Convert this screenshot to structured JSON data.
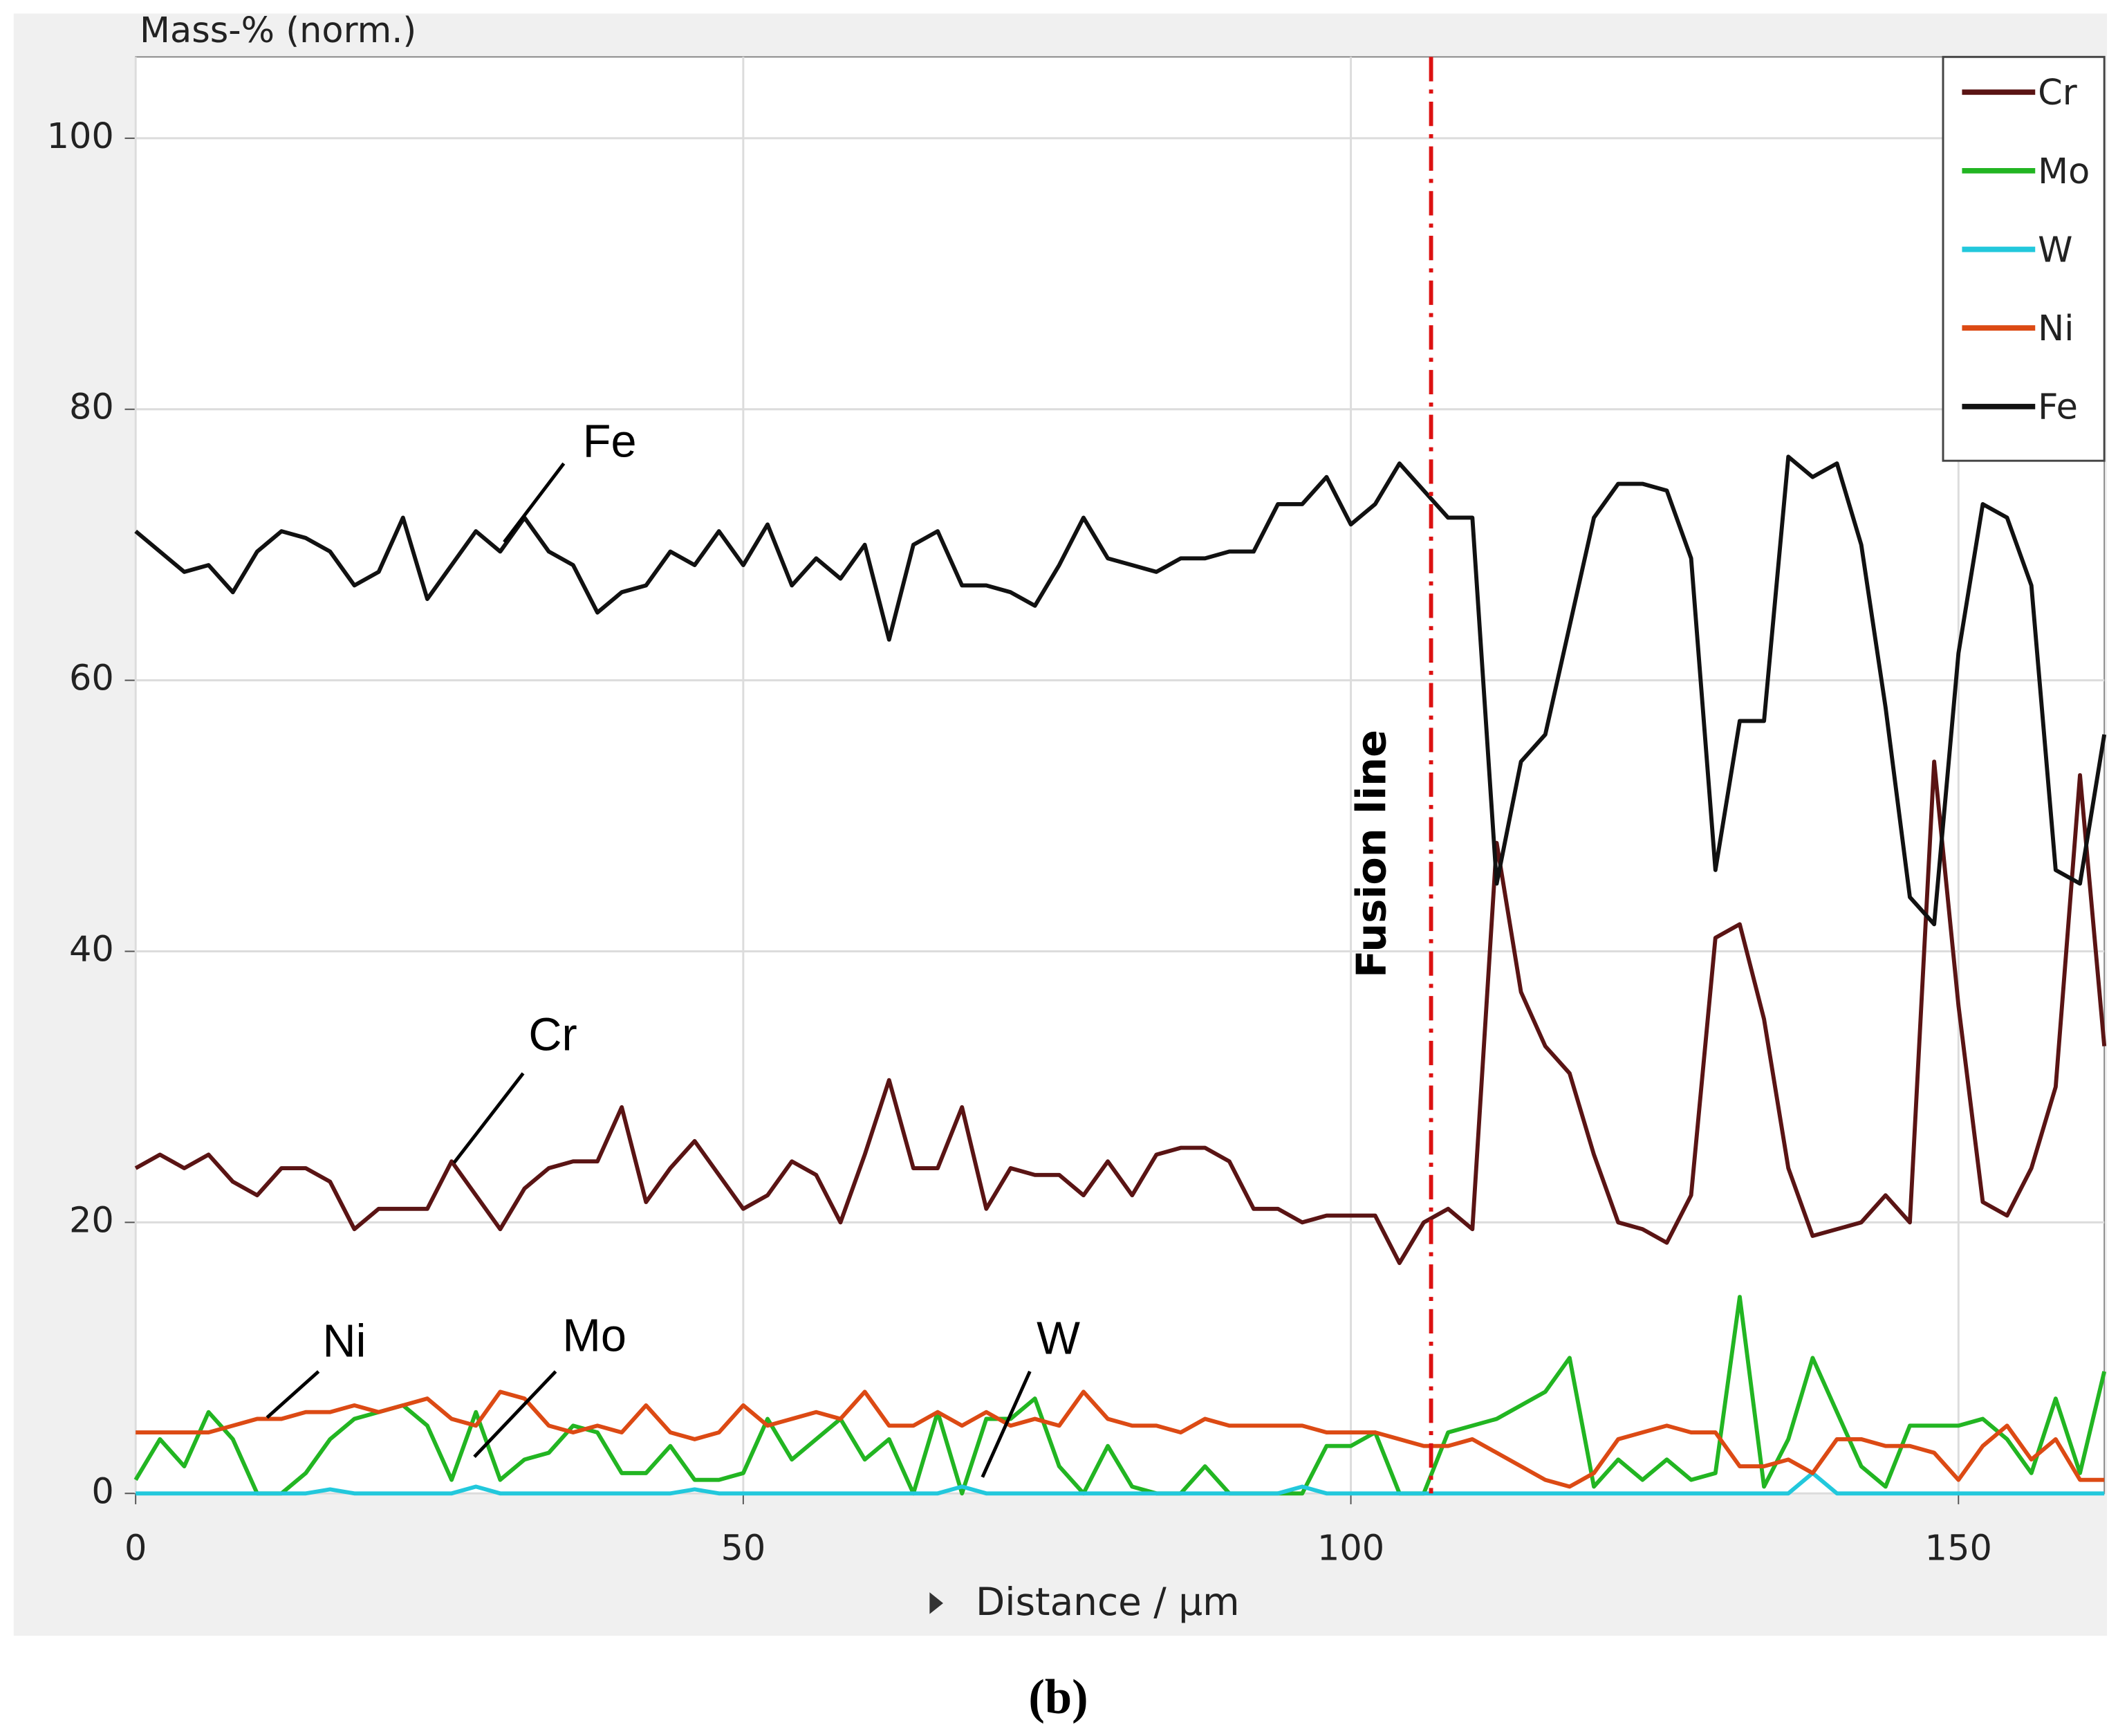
{
  "chart_data": {
    "type": "line",
    "y_label": "Mass-% (norm.)",
    "x_label": "Distance / µm",
    "caption": "(b)",
    "xlim": [
      0,
      162
    ],
    "ylim": [
      0,
      106
    ],
    "xticks": [
      0,
      50,
      100,
      150
    ],
    "yticks": [
      0,
      20,
      40,
      60,
      80,
      100
    ],
    "grid": true,
    "legend": "upper right",
    "fusion_line": {
      "x": 106.6,
      "label": "Fusion line",
      "color": "#dd1111"
    },
    "annotations": [
      "Fe",
      "Cr",
      "Ni",
      "Mo",
      "W"
    ],
    "x": [
      0,
      2,
      4,
      6,
      8,
      10,
      12,
      14,
      16,
      18,
      20,
      22,
      24,
      26,
      28,
      30,
      32,
      34,
      36,
      38,
      40,
      42,
      44,
      46,
      48,
      50,
      52,
      54,
      56,
      58,
      60,
      62,
      64,
      66,
      68,
      70,
      72,
      74,
      76,
      78,
      80,
      82,
      84,
      86,
      88,
      90,
      92,
      94,
      96,
      98,
      100,
      102,
      104,
      106,
      108,
      110,
      112,
      114,
      116,
      118,
      120,
      122,
      124,
      126,
      128,
      130,
      132,
      134,
      136,
      138,
      140,
      142,
      144,
      146,
      148,
      150,
      152,
      154,
      156,
      158,
      160,
      162
    ],
    "series": [
      {
        "name": "Cr",
        "color": "#5a1414",
        "values": [
          24,
          25,
          24,
          25,
          23,
          22,
          24,
          24,
          23,
          19.5,
          21,
          21,
          21,
          24.5,
          22,
          19.5,
          22.5,
          24,
          24.5,
          24.5,
          28.5,
          21.5,
          24,
          26,
          23.5,
          21,
          22,
          24.5,
          23.5,
          20,
          25,
          30.5,
          24,
          24,
          28.5,
          21,
          24,
          23.5,
          23.5,
          22,
          24.5,
          22,
          25,
          25.5,
          25.5,
          24.5,
          21,
          21,
          20,
          20.5,
          20.5,
          20.5,
          17,
          20,
          21,
          19.5,
          48,
          37,
          33,
          31,
          25,
          20,
          19.5,
          18.5,
          22,
          41,
          42,
          35,
          24,
          19,
          19.5,
          20,
          22,
          20,
          54,
          36,
          21.5,
          20.5,
          24,
          30,
          53,
          33
        ]
      },
      {
        "name": "Mo",
        "color": "#22b522",
        "values": [
          1,
          4,
          2,
          6,
          4,
          0,
          0,
          1.5,
          4,
          5.5,
          6,
          6.5,
          5,
          1,
          6,
          1,
          2.5,
          3,
          5,
          4.5,
          1.5,
          1.5,
          3.5,
          1,
          1,
          1.5,
          5.5,
          2.5,
          4,
          5.5,
          2.5,
          4,
          0,
          6,
          0,
          5.5,
          5.5,
          7,
          2,
          0,
          3.5,
          0.5,
          0,
          0,
          2,
          0,
          0,
          0,
          0,
          3.5,
          3.5,
          4.5,
          0,
          0,
          4.5,
          5,
          5.5,
          6.5,
          7.5,
          10,
          0.5,
          2.5,
          1,
          2.5,
          1,
          1.5,
          14.5,
          0.5,
          4,
          10,
          6,
          2,
          0.5,
          5,
          5,
          5,
          5.5,
          4,
          1.5,
          7,
          1.5,
          9
        ]
      },
      {
        "name": "W",
        "color": "#22c8dc",
        "values": [
          0,
          0,
          0,
          0,
          0,
          0,
          0,
          0,
          0.3,
          0,
          0,
          0,
          0,
          0,
          0.5,
          0,
          0,
          0,
          0,
          0,
          0,
          0,
          0,
          0.3,
          0,
          0,
          0,
          0,
          0,
          0,
          0,
          0,
          0,
          0,
          0.5,
          0,
          0,
          0,
          0,
          0,
          0,
          0,
          0,
          0,
          0,
          0,
          0,
          0,
          0.5,
          0,
          0,
          0,
          0,
          0,
          0,
          0,
          0,
          0,
          0,
          0,
          0,
          0,
          0,
          0,
          0,
          0,
          0,
          0,
          0,
          1.5,
          0,
          0,
          0,
          0,
          0,
          0,
          0,
          0,
          0,
          0,
          0,
          0
        ]
      },
      {
        "name": "Ni",
        "color": "#dc4a14",
        "values": [
          4.5,
          4.5,
          4.5,
          4.5,
          5,
          5.5,
          5.5,
          6,
          6,
          6.5,
          6,
          6.5,
          7,
          5.5,
          5,
          7.5,
          7,
          5,
          4.5,
          5,
          4.5,
          6.5,
          4.5,
          4,
          4.5,
          6.5,
          5,
          5.5,
          6,
          5.5,
          7.5,
          5,
          5,
          6,
          5,
          6,
          5,
          5.5,
          5,
          7.5,
          5.5,
          5,
          5,
          4.5,
          5.5,
          5,
          5,
          5,
          5,
          4.5,
          4.5,
          4.5,
          4,
          3.5,
          3.5,
          4,
          3,
          2,
          1,
          0.5,
          1.5,
          4,
          4.5,
          5,
          4.5,
          4.5,
          2,
          2,
          2.5,
          1.5,
          4,
          4,
          3.5,
          3.5,
          3,
          1,
          3.5,
          5,
          2.5,
          4,
          1,
          1
        ]
      },
      {
        "name": "Fe",
        "color": "#111111",
        "values": [
          71,
          69.5,
          68,
          68.5,
          66.5,
          69.5,
          71,
          70.5,
          69.5,
          67,
          68,
          72,
          66,
          68.5,
          71,
          69.5,
          72,
          69.5,
          68.5,
          65,
          66.5,
          67,
          69.5,
          68.5,
          71,
          68.5,
          71.5,
          67,
          69,
          67.5,
          70,
          63,
          70,
          71,
          67,
          67,
          66.5,
          65.5,
          68.5,
          72,
          69,
          68.5,
          68,
          69,
          69,
          69.5,
          69.5,
          73,
          73,
          75,
          71.5,
          73,
          76,
          74,
          72,
          72,
          45,
          54,
          56,
          64,
          72,
          74.5,
          74.5,
          74,
          69,
          46,
          57,
          57,
          76.5,
          75,
          76,
          70,
          58,
          44,
          42,
          62,
          73,
          72,
          67,
          46,
          45,
          56
        ]
      }
    ]
  }
}
